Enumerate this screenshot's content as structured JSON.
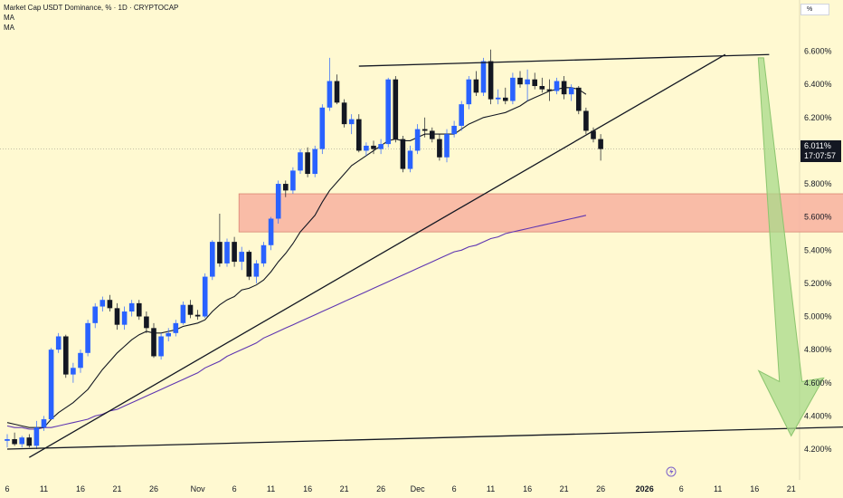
{
  "header": {
    "title": "Market Cap USDT Dominance, % · 1D · CRYPTOCAP",
    "ma1": "MA",
    "ma2": "MA"
  },
  "unit_button": "%",
  "current_price": {
    "value": "6.011%",
    "countdown": "17:07:57"
  },
  "colors": {
    "background": "#fff9d1",
    "up_candle": "#2962ff",
    "down_candle": "#131722",
    "ma_short": "#131722",
    "ma_long": "#5e35b1",
    "zone_fill": "#f8b1a0",
    "arrow_fill": "#a8d98a"
  },
  "chart_data": {
    "type": "candlestick",
    "title": "Market Cap USDT Dominance, % · 1D · CRYPTOCAP",
    "y_unit": "%",
    "ylim": [
      4.1,
      6.8
    ],
    "y_ticks": [
      "6.600%",
      "6.400%",
      "6.200%",
      "6.000%",
      "5.800%",
      "5.600%",
      "5.400%",
      "5.200%",
      "5.000%",
      "4.800%",
      "4.600%",
      "4.400%",
      "4.200%"
    ],
    "x_ticks": [
      "6",
      "11",
      "16",
      "21",
      "26",
      "Nov",
      "6",
      "11",
      "16",
      "21",
      "26",
      "Dec",
      "6",
      "11",
      "16",
      "21",
      "26",
      "2026",
      "6",
      "11",
      "16",
      "21"
    ],
    "x_tick_days": [
      0,
      5,
      10,
      15,
      20,
      26,
      31,
      36,
      41,
      46,
      51,
      56,
      61,
      66,
      71,
      76,
      81,
      87,
      92,
      97,
      102,
      107
    ],
    "ohlc": [
      [
        4.25,
        4.29,
        4.21,
        4.26
      ],
      [
        4.26,
        4.3,
        4.22,
        4.23
      ],
      [
        4.23,
        4.28,
        4.21,
        4.27
      ],
      [
        4.27,
        4.29,
        4.21,
        4.22
      ],
      [
        4.22,
        4.37,
        4.2,
        4.33
      ],
      [
        4.33,
        4.4,
        4.31,
        4.38
      ],
      [
        4.38,
        4.81,
        4.38,
        4.8
      ],
      [
        4.8,
        4.9,
        4.78,
        4.88
      ],
      [
        4.88,
        4.89,
        4.63,
        4.65
      ],
      [
        4.65,
        4.72,
        4.6,
        4.69
      ],
      [
        4.69,
        4.8,
        4.66,
        4.78
      ],
      [
        4.78,
        4.98,
        4.76,
        4.96
      ],
      [
        4.96,
        5.08,
        4.93,
        5.06
      ],
      [
        5.06,
        5.12,
        5.03,
        5.1
      ],
      [
        5.1,
        5.13,
        5.03,
        5.05
      ],
      [
        5.05,
        5.08,
        4.92,
        4.95
      ],
      [
        4.95,
        5.06,
        4.92,
        5.03
      ],
      [
        5.03,
        5.1,
        5.0,
        5.08
      ],
      [
        5.08,
        5.1,
        4.98,
        5.0
      ],
      [
        5.0,
        5.03,
        4.9,
        4.93
      ],
      [
        4.93,
        4.96,
        4.75,
        4.76
      ],
      [
        4.76,
        4.9,
        4.74,
        4.88
      ],
      [
        4.88,
        4.93,
        4.85,
        4.9
      ],
      [
        4.9,
        4.98,
        4.88,
        4.96
      ],
      [
        4.96,
        5.09,
        4.95,
        5.07
      ],
      [
        5.07,
        5.1,
        4.99,
        5.01
      ],
      [
        5.01,
        5.04,
        4.98,
        5.0
      ],
      [
        5.0,
        5.26,
        4.99,
        5.24
      ],
      [
        5.24,
        5.46,
        5.22,
        5.45
      ],
      [
        5.45,
        5.62,
        5.3,
        5.32
      ],
      [
        5.32,
        5.47,
        5.3,
        5.45
      ],
      [
        5.45,
        5.48,
        5.3,
        5.33
      ],
      [
        5.33,
        5.42,
        5.28,
        5.39
      ],
      [
        5.39,
        5.4,
        5.22,
        5.24
      ],
      [
        5.24,
        5.34,
        5.2,
        5.32
      ],
      [
        5.32,
        5.45,
        5.3,
        5.43
      ],
      [
        5.43,
        5.6,
        5.4,
        5.59
      ],
      [
        5.59,
        5.82,
        5.56,
        5.8
      ],
      [
        5.8,
        5.82,
        5.72,
        5.76
      ],
      [
        5.76,
        5.9,
        5.74,
        5.88
      ],
      [
        5.88,
        6.01,
        5.86,
        5.99
      ],
      [
        5.99,
        6.02,
        5.84,
        5.86
      ],
      [
        5.86,
        6.03,
        5.84,
        6.01
      ],
      [
        6.01,
        6.28,
        5.98,
        6.26
      ],
      [
        6.26,
        6.56,
        6.24,
        6.42
      ],
      [
        6.42,
        6.46,
        6.28,
        6.29
      ],
      [
        6.29,
        6.31,
        6.14,
        6.16
      ],
      [
        6.16,
        6.22,
        6.1,
        6.19
      ],
      [
        6.19,
        6.22,
        5.99,
        6.0
      ],
      [
        6.0,
        6.05,
        5.97,
        6.03
      ],
      [
        6.03,
        6.06,
        5.98,
        6.01
      ],
      [
        6.01,
        6.07,
        5.98,
        6.04
      ],
      [
        6.04,
        6.44,
        6.02,
        6.43
      ],
      [
        6.43,
        6.45,
        6.05,
        6.07
      ],
      [
        6.07,
        6.09,
        5.87,
        5.89
      ],
      [
        5.89,
        6.03,
        5.87,
        6.0
      ],
      [
        6.0,
        6.16,
        5.98,
        6.13
      ],
      [
        6.13,
        6.2,
        6.08,
        6.12
      ],
      [
        6.12,
        6.14,
        6.05,
        6.07
      ],
      [
        6.07,
        6.1,
        5.94,
        5.96
      ],
      [
        5.96,
        6.13,
        5.93,
        6.1
      ],
      [
        6.1,
        6.18,
        6.08,
        6.15
      ],
      [
        6.15,
        6.3,
        6.12,
        6.28
      ],
      [
        6.28,
        6.45,
        6.25,
        6.43
      ],
      [
        6.43,
        6.48,
        6.33,
        6.35
      ],
      [
        6.35,
        6.56,
        6.33,
        6.54
      ],
      [
        6.54,
        6.61,
        6.28,
        6.31
      ],
      [
        6.31,
        6.37,
        6.28,
        6.32
      ],
      [
        6.32,
        6.38,
        6.28,
        6.3
      ],
      [
        6.3,
        6.47,
        6.28,
        6.44
      ],
      [
        6.44,
        6.48,
        6.38,
        6.4
      ],
      [
        6.4,
        6.49,
        6.3,
        6.43
      ],
      [
        6.43,
        6.47,
        6.37,
        6.39
      ],
      [
        6.39,
        6.44,
        6.35,
        6.37
      ],
      [
        6.37,
        6.43,
        6.3,
        6.36
      ],
      [
        6.36,
        6.44,
        6.34,
        6.42
      ],
      [
        6.42,
        6.45,
        6.31,
        6.34
      ],
      [
        6.34,
        6.4,
        6.3,
        6.38
      ],
      [
        6.38,
        6.39,
        6.22,
        6.24
      ],
      [
        6.24,
        6.26,
        6.1,
        6.12
      ],
      [
        6.12,
        6.14,
        6.05,
        6.07
      ],
      [
        6.07,
        6.1,
        5.94,
        6.01
      ]
    ],
    "ma_short_values": [
      4.36,
      4.35,
      4.34,
      4.33,
      4.33,
      4.33,
      4.38,
      4.42,
      4.45,
      4.48,
      4.52,
      4.56,
      4.62,
      4.68,
      4.73,
      4.78,
      4.82,
      4.86,
      4.89,
      4.91,
      4.9,
      4.9,
      4.91,
      4.92,
      4.94,
      4.95,
      4.96,
      4.98,
      5.03,
      5.07,
      5.1,
      5.12,
      5.16,
      5.17,
      5.19,
      5.22,
      5.27,
      5.33,
      5.38,
      5.44,
      5.51,
      5.56,
      5.61,
      5.69,
      5.76,
      5.81,
      5.86,
      5.91,
      5.94,
      5.97,
      6.0,
      6.03,
      6.06,
      6.07,
      6.06,
      6.06,
      6.08,
      6.1,
      6.1,
      6.1,
      6.1,
      6.1,
      6.13,
      6.16,
      6.18,
      6.2,
      6.21,
      6.22,
      6.23,
      6.25,
      6.27,
      6.3,
      6.32,
      6.34,
      6.36,
      6.37,
      6.38,
      6.38,
      6.37,
      6.34
    ],
    "ma_long_values": [
      4.34,
      4.33,
      4.33,
      4.32,
      4.32,
      4.33,
      4.33,
      4.34,
      4.35,
      4.36,
      4.37,
      4.38,
      4.4,
      4.41,
      4.43,
      4.44,
      4.46,
      4.48,
      4.5,
      4.52,
      4.54,
      4.56,
      4.58,
      4.6,
      4.62,
      4.64,
      4.66,
      4.69,
      4.71,
      4.73,
      4.76,
      4.78,
      4.8,
      4.82,
      4.84,
      4.87,
      4.89,
      4.91,
      4.93,
      4.95,
      4.97,
      4.99,
      5.01,
      5.03,
      5.05,
      5.07,
      5.09,
      5.11,
      5.13,
      5.15,
      5.17,
      5.19,
      5.21,
      5.23,
      5.25,
      5.27,
      5.29,
      5.31,
      5.33,
      5.35,
      5.37,
      5.39,
      5.4,
      5.42,
      5.43,
      5.45,
      5.47,
      5.48,
      5.5,
      5.51,
      5.52,
      5.53,
      5.54,
      5.55,
      5.56,
      5.57,
      5.58,
      5.59,
      5.6,
      5.61
    ],
    "annotations": {
      "resistance_line": {
        "from": [
          48,
          6.51
        ],
        "to": [
          104,
          6.58
        ]
      },
      "upper_trendline": {
        "from": [
          3,
          4.15
        ],
        "to": [
          98,
          6.58
        ]
      },
      "support_line": {
        "from": [
          0,
          4.2
        ],
        "to": [
          120,
          4.34
        ]
      },
      "zone": {
        "day_from": 32,
        "day_to": 117,
        "y_from": 5.51,
        "y_to": 5.74
      },
      "projection_arrow": {
        "from": [
          103,
          6.56
        ],
        "to": [
          107,
          4.28
        ]
      }
    }
  }
}
